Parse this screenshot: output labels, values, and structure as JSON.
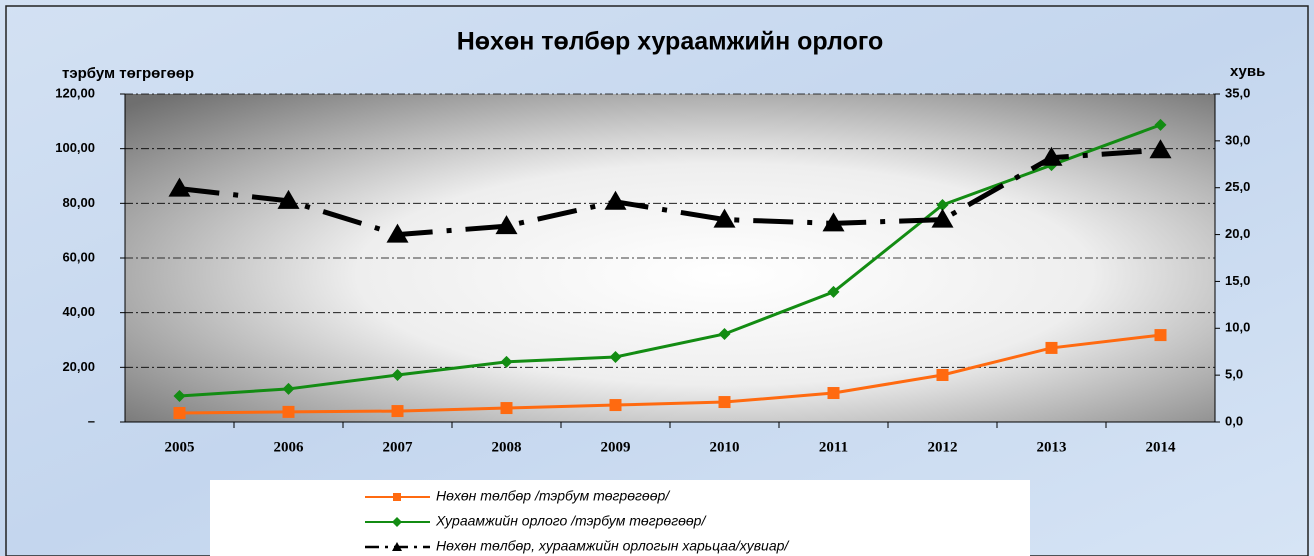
{
  "chart_data": {
    "type": "line",
    "title": "Нөхөн төлбөр хураамжийн орлого",
    "y_label": "тэрбум төгрөгөөр",
    "y2_label": "хувь",
    "categories": [
      "2005",
      "2006",
      "2007",
      "2008",
      "2009",
      "2010",
      "2011",
      "2012",
      "2013",
      "2014"
    ],
    "ylim": [
      0,
      120
    ],
    "yticks": [
      {
        "value": 0,
        "label": "–"
      },
      {
        "value": 20,
        "label": "20,00"
      },
      {
        "value": 40,
        "label": "40,00"
      },
      {
        "value": 60,
        "label": "60,00"
      },
      {
        "value": 80,
        "label": "80,00"
      },
      {
        "value": 100,
        "label": "100,00"
      },
      {
        "value": 120,
        "label": "120,00"
      }
    ],
    "y2lim": [
      0,
      35
    ],
    "y2ticks": [
      {
        "value": 0,
        "label": "0,0"
      },
      {
        "value": 5,
        "label": "5,0"
      },
      {
        "value": 10,
        "label": "10,0"
      },
      {
        "value": 15,
        "label": "15,0"
      },
      {
        "value": 20,
        "label": "20,0"
      },
      {
        "value": 25,
        "label": "25,0"
      },
      {
        "value": 30,
        "label": "30,0"
      },
      {
        "value": 35,
        "label": "35,0"
      }
    ],
    "grid": true,
    "legend": "bottom",
    "series": [
      {
        "name": "Нөхөн төлбөр /тэрбум төгрөгөөр/",
        "color": "#ff6a10",
        "marker": "square",
        "values": [
          3.3,
          3.7,
          4.0,
          5.1,
          6.2,
          7.3,
          10.6,
          17.2,
          27.1,
          31.8
        ]
      },
      {
        "name": "Хураамжийн орлого /тэрбум төгрөгөөр/",
        "color": "#138c13",
        "marker": "diamond",
        "values": [
          9.5,
          12.1,
          17.2,
          22.0,
          23.8,
          32.2,
          47.6,
          79.4,
          94.0,
          108.7
        ]
      },
      {
        "name": "Нөхөн төлбөр, хураамжийн орлогын харьцаа/хувиар/",
        "color": "#000000",
        "marker": "triangle",
        "axis": "y2",
        "dash": "dashdot",
        "values": [
          24.9,
          23.6,
          20.0,
          20.9,
          23.5,
          21.6,
          21.2,
          21.6,
          28.2,
          29.0
        ]
      }
    ]
  }
}
